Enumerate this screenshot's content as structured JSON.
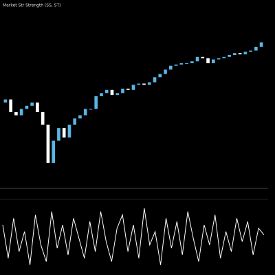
{
  "chart_data": {
    "type": "candlestick",
    "title": "Market Str Strength (SS, ST)",
    "up_color": "#5ab4e5",
    "down_color": "#ffffff",
    "ylim": [
      0,
      260
    ],
    "open": [
      120,
      125,
      105,
      100,
      110,
      115,
      120,
      105,
      85,
      25,
      60,
      80,
      65,
      85,
      95,
      100,
      110,
      110,
      130,
      135,
      140,
      132,
      135,
      142,
      140,
      148,
      150,
      148,
      152,
      160,
      165,
      172,
      178,
      180,
      182,
      182,
      185,
      192,
      190,
      182,
      188,
      190,
      192,
      195,
      198,
      196,
      200,
      202,
      208
    ],
    "close": [
      125,
      105,
      100,
      110,
      115,
      120,
      105,
      85,
      25,
      60,
      80,
      65,
      85,
      95,
      100,
      110,
      110,
      130,
      135,
      140,
      132,
      135,
      142,
      140,
      148,
      150,
      148,
      152,
      160,
      165,
      172,
      178,
      180,
      182,
      182,
      185,
      192,
      190,
      182,
      188,
      190,
      192,
      195,
      198,
      196,
      200,
      202,
      208,
      215
    ],
    "oscillator": {
      "type": "line",
      "color": "#ffffff",
      "ylim": [
        0,
        100
      ],
      "values": [
        70,
        20,
        80,
        30,
        60,
        10,
        85,
        40,
        15,
        90,
        35,
        70,
        25,
        80,
        50,
        20,
        75,
        30,
        90,
        45,
        15,
        65,
        85,
        30,
        70,
        20,
        95,
        40,
        60,
        10,
        80,
        35,
        75,
        25,
        90,
        50,
        15,
        70,
        40,
        85,
        20,
        60,
        30,
        80,
        45,
        75,
        25,
        65,
        55
      ]
    }
  }
}
